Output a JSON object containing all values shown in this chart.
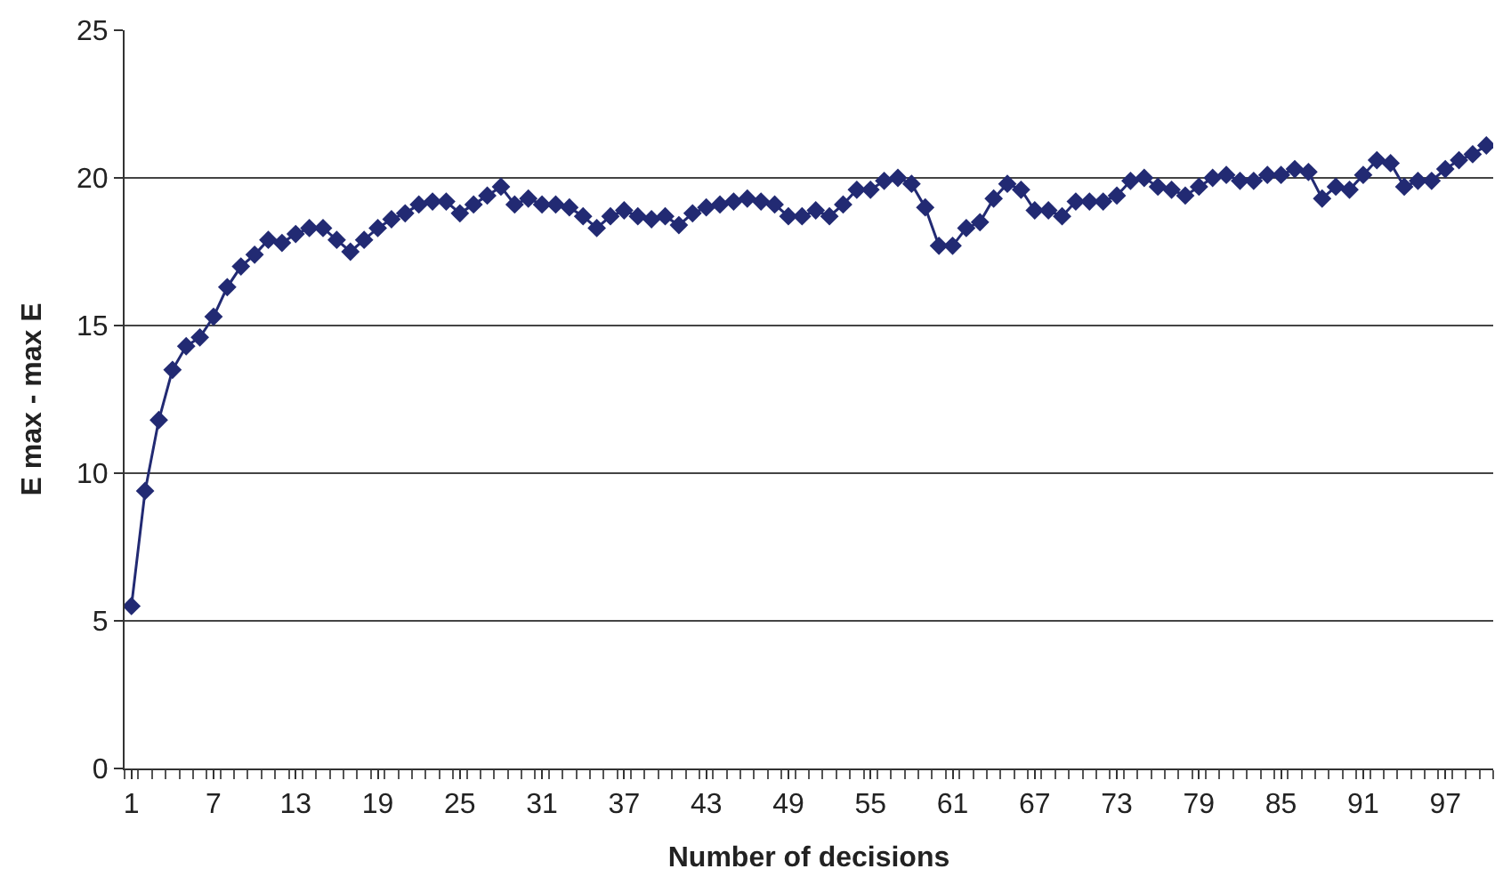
{
  "chart_data": {
    "type": "line",
    "xlabel": "Number of decisions",
    "ylabel": "E max - max E",
    "x": [
      1,
      2,
      3,
      4,
      5,
      6,
      7,
      8,
      9,
      10,
      11,
      12,
      13,
      14,
      15,
      16,
      17,
      18,
      19,
      20,
      21,
      22,
      23,
      24,
      25,
      26,
      27,
      28,
      29,
      30,
      31,
      32,
      33,
      34,
      35,
      36,
      37,
      38,
      39,
      40,
      41,
      42,
      43,
      44,
      45,
      46,
      47,
      48,
      49,
      50,
      51,
      52,
      53,
      54,
      55,
      56,
      57,
      58,
      59,
      60,
      61,
      62,
      63,
      64,
      65,
      66,
      67,
      68,
      69,
      70,
      71,
      72,
      73,
      74,
      75,
      76,
      77,
      78,
      79,
      80,
      81,
      82,
      83,
      84,
      85,
      86,
      87,
      88,
      89,
      90,
      91,
      92,
      93,
      94,
      95,
      96,
      97,
      98,
      99,
      100
    ],
    "series": [
      {
        "color": "#222a73",
        "values": [
          5.5,
          9.4,
          11.8,
          13.5,
          14.3,
          14.6,
          15.3,
          16.3,
          17.0,
          17.4,
          17.9,
          17.8,
          18.1,
          18.3,
          18.3,
          17.9,
          17.5,
          17.9,
          18.3,
          18.6,
          18.8,
          19.1,
          19.2,
          19.2,
          18.8,
          19.1,
          19.4,
          19.7,
          19.1,
          19.3,
          19.1,
          19.1,
          19.0,
          18.7,
          18.3,
          18.7,
          18.9,
          18.7,
          18.6,
          18.7,
          18.4,
          18.8,
          19.0,
          19.1,
          19.2,
          19.3,
          19.2,
          19.1,
          18.7,
          18.7,
          18.9,
          18.7,
          19.1,
          19.6,
          19.6,
          19.9,
          20.0,
          19.8,
          19.0,
          17.7,
          17.7,
          18.3,
          18.5,
          19.3,
          19.8,
          19.6,
          18.9,
          18.9,
          18.7,
          19.2,
          19.2,
          19.2,
          19.4,
          19.9,
          20.0,
          19.7,
          19.6,
          19.4,
          19.7,
          20.0,
          20.1,
          19.9,
          19.9,
          20.1,
          20.1,
          20.3,
          20.2,
          19.3,
          19.7,
          19.6,
          20.1,
          20.6,
          20.5,
          19.7,
          19.9,
          19.9,
          20.3,
          20.6,
          20.8,
          21.1
        ]
      }
    ],
    "xlim": [
      0.5,
      100.5
    ],
    "xticks": [
      1,
      7,
      13,
      19,
      25,
      31,
      37,
      43,
      49,
      55,
      61,
      67,
      73,
      79,
      85,
      91,
      97
    ],
    "ylim": [
      0,
      25
    ],
    "yticks": [
      0,
      5,
      10,
      15,
      20,
      25
    ],
    "grid": "y",
    "legend": false,
    "marker": "diamond",
    "line_style": "solid"
  }
}
